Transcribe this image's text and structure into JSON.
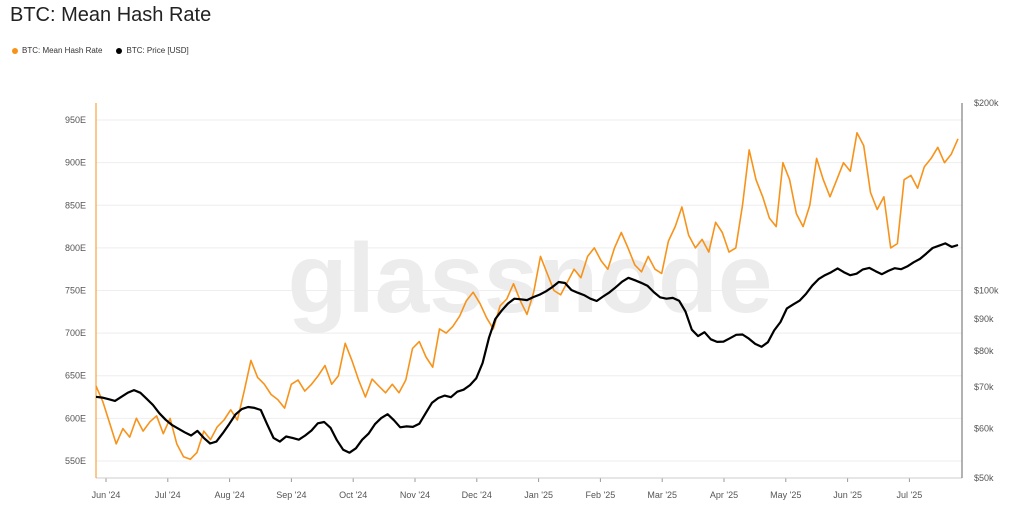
{
  "title": "BTC: Mean Hash Rate",
  "colors": {
    "hash": "#F7931A",
    "price": "#000000",
    "grid": "#eeeeee",
    "axis": "#999999",
    "text": "#555555"
  },
  "legend": [
    {
      "label": "BTC: Mean Hash Rate",
      "color": "#F7931A"
    },
    {
      "label": "BTC: Price [USD]",
      "color": "#000000"
    }
  ],
  "watermark": "glassnode",
  "chart_data": {
    "type": "line",
    "title": "BTC: Mean Hash Rate",
    "x_ticks": [
      "Jun '24",
      "Jul '24",
      "Aug '24",
      "Sep '24",
      "Oct '24",
      "Nov '24",
      "Dec '24",
      "Jan '25",
      "Feb '25",
      "Mar '25",
      "Apr '25",
      "May '25",
      "Jun '25",
      "Jul '25"
    ],
    "y_left_ticks": [
      "550E",
      "600E",
      "650E",
      "700E",
      "750E",
      "800E",
      "850E",
      "900E",
      "950E"
    ],
    "y_left_values": [
      550,
      600,
      650,
      700,
      750,
      800,
      850,
      900,
      950
    ],
    "y_left_range": [
      530,
      970
    ],
    "y_right_ticks": [
      "$50k",
      "$60k",
      "$70k",
      "$80k",
      "$90k",
      "$100k",
      "$200k"
    ],
    "y_right_values": [
      50000,
      60000,
      70000,
      80000,
      90000,
      100000,
      200000
    ],
    "y_right_range": [
      50000,
      200000
    ],
    "y_right_scale": "log",
    "grid": true,
    "legend_position": "top-left",
    "series": [
      {
        "name": "BTC: Mean Hash Rate",
        "axis": "left",
        "color": "#F7931A",
        "values": [
          [
            0,
            638
          ],
          [
            1,
            620
          ],
          [
            2,
            595
          ],
          [
            3,
            570
          ],
          [
            4,
            588
          ],
          [
            5,
            578
          ],
          [
            6,
            600
          ],
          [
            7,
            585
          ],
          [
            8,
            596
          ],
          [
            9,
            603
          ],
          [
            10,
            582
          ],
          [
            11,
            600
          ],
          [
            12,
            570
          ],
          [
            13,
            555
          ],
          [
            14,
            552
          ],
          [
            15,
            560
          ],
          [
            16,
            585
          ],
          [
            17,
            575
          ],
          [
            18,
            590
          ],
          [
            19,
            598
          ],
          [
            20,
            610
          ],
          [
            21,
            598
          ],
          [
            22,
            632
          ],
          [
            23,
            668
          ],
          [
            24,
            648
          ],
          [
            25,
            640
          ],
          [
            26,
            628
          ],
          [
            27,
            622
          ],
          [
            28,
            612
          ],
          [
            29,
            640
          ],
          [
            30,
            645
          ],
          [
            31,
            632
          ],
          [
            32,
            640
          ],
          [
            33,
            650
          ],
          [
            34,
            662
          ],
          [
            35,
            640
          ],
          [
            36,
            650
          ],
          [
            37,
            688
          ],
          [
            38,
            668
          ],
          [
            39,
            645
          ],
          [
            40,
            625
          ],
          [
            41,
            646
          ],
          [
            42,
            638
          ],
          [
            43,
            630
          ],
          [
            44,
            640
          ],
          [
            45,
            630
          ],
          [
            46,
            645
          ],
          [
            47,
            682
          ],
          [
            48,
            690
          ],
          [
            49,
            672
          ],
          [
            50,
            660
          ],
          [
            51,
            705
          ],
          [
            52,
            700
          ],
          [
            53,
            708
          ],
          [
            54,
            720
          ],
          [
            55,
            738
          ],
          [
            56,
            748
          ],
          [
            57,
            735
          ],
          [
            58,
            718
          ],
          [
            59,
            705
          ],
          [
            60,
            732
          ],
          [
            61,
            740
          ],
          [
            62,
            758
          ],
          [
            63,
            738
          ],
          [
            64,
            722
          ],
          [
            65,
            748
          ],
          [
            66,
            790
          ],
          [
            67,
            770
          ],
          [
            68,
            750
          ],
          [
            69,
            745
          ],
          [
            70,
            760
          ],
          [
            71,
            775
          ],
          [
            72,
            765
          ],
          [
            73,
            790
          ],
          [
            74,
            800
          ],
          [
            75,
            785
          ],
          [
            76,
            775
          ],
          [
            77,
            800
          ],
          [
            78,
            818
          ],
          [
            79,
            800
          ],
          [
            80,
            780
          ],
          [
            81,
            772
          ],
          [
            82,
            790
          ],
          [
            83,
            775
          ],
          [
            84,
            770
          ],
          [
            85,
            808
          ],
          [
            86,
            825
          ],
          [
            87,
            848
          ],
          [
            88,
            815
          ],
          [
            89,
            800
          ],
          [
            90,
            810
          ],
          [
            91,
            795
          ],
          [
            92,
            830
          ],
          [
            93,
            818
          ],
          [
            94,
            795
          ],
          [
            95,
            800
          ],
          [
            96,
            850
          ],
          [
            97,
            915
          ],
          [
            98,
            880
          ],
          [
            99,
            860
          ],
          [
            100,
            835
          ],
          [
            101,
            825
          ],
          [
            102,
            900
          ],
          [
            103,
            880
          ],
          [
            104,
            840
          ],
          [
            105,
            825
          ],
          [
            106,
            850
          ],
          [
            107,
            905
          ],
          [
            108,
            880
          ],
          [
            109,
            860
          ],
          [
            110,
            880
          ],
          [
            111,
            900
          ],
          [
            112,
            890
          ],
          [
            113,
            935
          ],
          [
            114,
            920
          ],
          [
            115,
            865
          ],
          [
            116,
            845
          ],
          [
            117,
            860
          ],
          [
            118,
            800
          ],
          [
            119,
            805
          ],
          [
            120,
            880
          ],
          [
            121,
            885
          ],
          [
            122,
            870
          ],
          [
            123,
            895
          ],
          [
            124,
            905
          ],
          [
            125,
            918
          ],
          [
            126,
            900
          ],
          [
            127,
            910
          ],
          [
            128,
            928
          ]
        ]
      },
      {
        "name": "BTC: Price [USD]",
        "axis": "right",
        "color": "#000000",
        "values": [
          [
            0,
            67500
          ],
          [
            1,
            67300
          ],
          [
            2,
            66900
          ],
          [
            3,
            66500
          ],
          [
            4,
            67500
          ],
          [
            5,
            68500
          ],
          [
            6,
            69200
          ],
          [
            7,
            68500
          ],
          [
            8,
            67000
          ],
          [
            9,
            65500
          ],
          [
            10,
            63500
          ],
          [
            11,
            62000
          ],
          [
            12,
            60800
          ],
          [
            13,
            60000
          ],
          [
            14,
            59200
          ],
          [
            15,
            58500
          ],
          [
            16,
            59500
          ],
          [
            17,
            58000
          ],
          [
            18,
            56800
          ],
          [
            19,
            57200
          ],
          [
            20,
            59000
          ],
          [
            21,
            61000
          ],
          [
            22,
            63200
          ],
          [
            23,
            64500
          ],
          [
            24,
            65000
          ],
          [
            25,
            64800
          ],
          [
            26,
            64300
          ],
          [
            27,
            61000
          ],
          [
            28,
            58000
          ],
          [
            29,
            57200
          ],
          [
            30,
            58300
          ],
          [
            31,
            58000
          ],
          [
            32,
            57600
          ],
          [
            33,
            58500
          ],
          [
            34,
            59600
          ],
          [
            35,
            61200
          ],
          [
            36,
            61500
          ],
          [
            37,
            60200
          ],
          [
            38,
            57500
          ],
          [
            39,
            55500
          ],
          [
            40,
            54900
          ],
          [
            41,
            55800
          ],
          [
            42,
            57600
          ],
          [
            43,
            58900
          ],
          [
            44,
            61000
          ],
          [
            45,
            62400
          ],
          [
            46,
            63300
          ],
          [
            47,
            61900
          ],
          [
            48,
            60300
          ],
          [
            49,
            60500
          ],
          [
            50,
            60400
          ],
          [
            51,
            61100
          ],
          [
            52,
            63500
          ],
          [
            53,
            66000
          ],
          [
            54,
            67200
          ],
          [
            55,
            67800
          ],
          [
            56,
            67400
          ],
          [
            57,
            68800
          ],
          [
            58,
            69300
          ],
          [
            59,
            70500
          ],
          [
            60,
            72300
          ],
          [
            61,
            76500
          ],
          [
            62,
            84000
          ],
          [
            63,
            90000
          ],
          [
            64,
            92800
          ],
          [
            65,
            95300
          ],
          [
            66,
            97000
          ],
          [
            67,
            96800
          ],
          [
            68,
            96500
          ],
          [
            69,
            97600
          ],
          [
            70,
            98500
          ],
          [
            71,
            99700
          ],
          [
            72,
            101300
          ],
          [
            73,
            103200
          ],
          [
            74,
            102800
          ],
          [
            75,
            100200
          ],
          [
            76,
            99200
          ],
          [
            77,
            98300
          ],
          [
            78,
            97000
          ],
          [
            79,
            96200
          ],
          [
            80,
            97800
          ],
          [
            81,
            99300
          ],
          [
            82,
            101200
          ],
          [
            83,
            103300
          ],
          [
            84,
            104800
          ],
          [
            85,
            103900
          ],
          [
            86,
            102900
          ],
          [
            87,
            101800
          ],
          [
            88,
            99400
          ],
          [
            89,
            97500
          ],
          [
            90,
            97000
          ],
          [
            91,
            97300
          ],
          [
            92,
            96300
          ],
          [
            93,
            92500
          ],
          [
            94,
            86500
          ],
          [
            95,
            84500
          ],
          [
            96,
            85700
          ],
          [
            97,
            83500
          ],
          [
            98,
            82700
          ],
          [
            99,
            82800
          ],
          [
            100,
            83800
          ],
          [
            101,
            84900
          ],
          [
            102,
            85000
          ],
          [
            103,
            83700
          ],
          [
            104,
            82100
          ],
          [
            105,
            81200
          ],
          [
            106,
            82600
          ],
          [
            107,
            86300
          ],
          [
            108,
            89000
          ],
          [
            109,
            93600
          ],
          [
            110,
            95000
          ],
          [
            111,
            96300
          ],
          [
            112,
            98700
          ],
          [
            113,
            101800
          ],
          [
            114,
            104300
          ],
          [
            115,
            105800
          ],
          [
            116,
            107000
          ],
          [
            117,
            108500
          ],
          [
            118,
            107000
          ],
          [
            119,
            105800
          ],
          [
            120,
            106400
          ],
          [
            121,
            108100
          ],
          [
            122,
            108700
          ],
          [
            123,
            107400
          ],
          [
            124,
            106200
          ],
          [
            125,
            107500
          ],
          [
            126,
            108600
          ],
          [
            127,
            108200
          ],
          [
            128,
            109300
          ],
          [
            129,
            111000
          ],
          [
            130,
            112400
          ],
          [
            131,
            114600
          ],
          [
            132,
            117000
          ],
          [
            133,
            118000
          ],
          [
            134,
            119000
          ],
          [
            135,
            117500
          ],
          [
            136,
            118300
          ]
        ]
      }
    ]
  }
}
